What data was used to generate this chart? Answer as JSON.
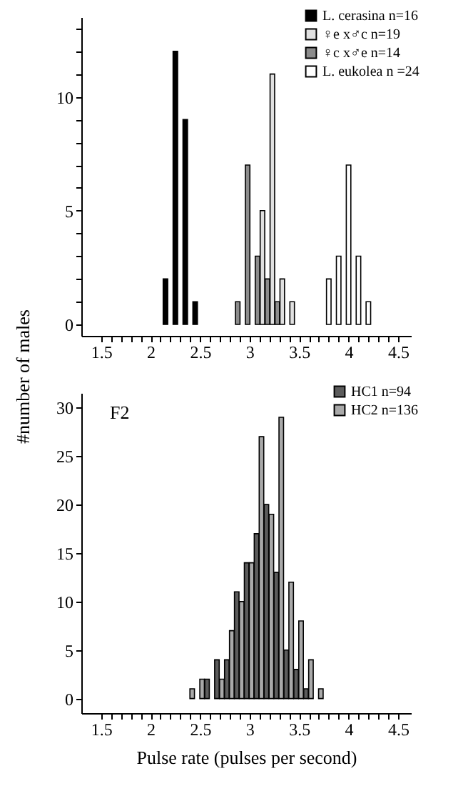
{
  "chart_data": [
    {
      "type": "bar",
      "legend": "top right",
      "ylabel": "#number of males",
      "xlim": [
        1.3,
        4.63
      ],
      "ylim": [
        -0.5,
        13.5
      ],
      "xticks": [
        1.5,
        {
          "value": 1.6,
          "label": null
        },
        {
          "value": 1.7,
          "label": null
        },
        {
          "value": 1.8,
          "label": null
        },
        {
          "value": 1.9,
          "label": null
        },
        2,
        {
          "value": 2.1,
          "label": null
        },
        {
          "value": 2.2,
          "label": null
        },
        {
          "value": 2.3,
          "label": null
        },
        {
          "value": 2.4,
          "label": null
        },
        2.5,
        {
          "value": 2.6,
          "label": null
        },
        {
          "value": 2.7,
          "label": null
        },
        {
          "value": 2.8,
          "label": null
        },
        {
          "value": 2.9,
          "label": null
        },
        3,
        {
          "value": 3.1,
          "label": null
        },
        {
          "value": 3.2,
          "label": null
        },
        {
          "value": 3.3,
          "label": null
        },
        {
          "value": 3.4,
          "label": null
        },
        3.5,
        {
          "value": 3.6,
          "label": null
        },
        {
          "value": 3.7,
          "label": null
        },
        {
          "value": 3.8,
          "label": null
        },
        {
          "value": 3.9,
          "label": null
        },
        4,
        {
          "value": 4.1,
          "label": null
        },
        {
          "value": 4.2,
          "label": null
        },
        {
          "value": 4.3,
          "label": null
        },
        {
          "value": 4.4,
          "label": null
        },
        4.5
      ],
      "yticks": [
        0,
        {
          "value": 1,
          "label": null
        },
        {
          "value": 2,
          "label": null
        },
        {
          "value": 3,
          "label": null
        },
        {
          "value": 4,
          "label": null
        },
        5,
        {
          "value": 6,
          "label": null
        },
        {
          "value": 7,
          "label": null
        },
        {
          "value": 8,
          "label": null
        },
        {
          "value": 9,
          "label": null
        },
        10,
        {
          "value": 11,
          "label": null
        },
        {
          "value": 12,
          "label": null
        },
        {
          "value": 13,
          "label": null
        }
      ],
      "series": [
        {
          "name": "L. cerasina n=16",
          "color": "#000000",
          "x": [
            2.15,
            2.25,
            2.35,
            2.45
          ],
          "values": [
            2,
            12,
            9,
            1
          ]
        },
        {
          "name": "♀e x♂c n=19",
          "color": "#e0e0e0",
          "x": [
            3.13,
            3.23,
            3.33,
            3.43
          ],
          "values": [
            5,
            11,
            2,
            1
          ]
        },
        {
          "name": "♀c x♂e n=14",
          "color": "#8c8c8c",
          "x": [
            2.88,
            2.98,
            3.08,
            3.18,
            3.28
          ],
          "values": [
            1,
            7,
            3,
            2,
            1
          ]
        },
        {
          "name": "L. eukolea n =24",
          "color": "#ffffff",
          "x": [
            3.8,
            3.9,
            4.0,
            4.1,
            4.2
          ],
          "values": [
            2,
            3,
            7,
            3,
            1
          ]
        }
      ]
    },
    {
      "type": "bar",
      "legend": "top right",
      "xlabel": "Pulse rate (pulses per second)",
      "annotations": [
        "F2"
      ],
      "xlim": [
        1.3,
        4.63
      ],
      "ylim": [
        -1.5,
        31.5
      ],
      "xticks": [
        1.5,
        {
          "value": 1.6,
          "label": null
        },
        {
          "value": 1.7,
          "label": null
        },
        {
          "value": 1.8,
          "label": null
        },
        {
          "value": 1.9,
          "label": null
        },
        2,
        {
          "value": 2.1,
          "label": null
        },
        {
          "value": 2.2,
          "label": null
        },
        {
          "value": 2.3,
          "label": null
        },
        {
          "value": 2.4,
          "label": null
        },
        2.5,
        {
          "value": 2.6,
          "label": null
        },
        {
          "value": 2.7,
          "label": null
        },
        {
          "value": 2.8,
          "label": null
        },
        {
          "value": 2.9,
          "label": null
        },
        3,
        {
          "value": 3.1,
          "label": null
        },
        {
          "value": 3.2,
          "label": null
        },
        {
          "value": 3.3,
          "label": null
        },
        {
          "value": 3.4,
          "label": null
        },
        3.5,
        {
          "value": 3.6,
          "label": null
        },
        {
          "value": 3.7,
          "label": null
        },
        {
          "value": 3.8,
          "label": null
        },
        {
          "value": 3.9,
          "label": null
        },
        4,
        {
          "value": 4.1,
          "label": null
        },
        {
          "value": 4.2,
          "label": null
        },
        {
          "value": 4.3,
          "label": null
        },
        {
          "value": 4.4,
          "label": null
        },
        4.5
      ],
      "yticks": [
        0,
        5,
        10,
        15,
        20,
        25,
        30
      ],
      "series": [
        {
          "name": "HC1 n=94",
          "color": "#5c5c5c",
          "x": [
            2.57,
            2.67,
            2.77,
            2.87,
            2.97,
            3.07,
            3.17,
            3.27,
            3.37,
            3.47,
            3.57
          ],
          "values": [
            2,
            4,
            4,
            11,
            14,
            17,
            20,
            13,
            5,
            3,
            1
          ]
        },
        {
          "name": "HC2 n=136",
          "color": "#a9a9a9",
          "x": [
            2.42,
            2.52,
            2.72,
            2.82,
            2.92,
            3.02,
            3.12,
            3.22,
            3.32,
            3.42,
            3.52,
            3.62,
            3.72
          ],
          "values": [
            1,
            2,
            2,
            7,
            10,
            14,
            27,
            19,
            29,
            12,
            8,
            4,
            1
          ]
        }
      ]
    }
  ]
}
